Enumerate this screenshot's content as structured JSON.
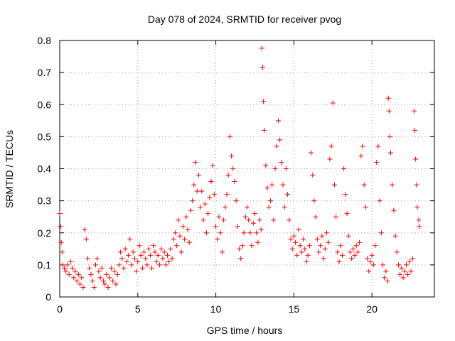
{
  "chart_data": {
    "type": "scatter",
    "title": "Day 078 of 2024, SRMTID for receiver pvog",
    "xlabel": "GPS time / hours",
    "ylabel": "SRMTID / TECUs",
    "xlim": [
      0,
      24
    ],
    "ylim": [
      0,
      0.8
    ],
    "xticks": [
      0,
      5,
      10,
      15,
      20
    ],
    "xtick_labels": [
      "0",
      "5",
      "10",
      "15",
      "20"
    ],
    "yticks": [
      0,
      0.1,
      0.2,
      0.3,
      0.4,
      0.5,
      0.6,
      0.7,
      0.8
    ],
    "ytick_labels": [
      "0",
      "0.1",
      "0.2",
      "0.3",
      "0.4",
      "0.5",
      "0.6",
      "0.7",
      "0.8"
    ],
    "grid": true,
    "marker": "+",
    "colors": {
      "marker": "#ff0000",
      "grid": "#a0a0a0",
      "axis": "#000000"
    },
    "series": [
      {
        "name": "SRMTID",
        "points": [
          [
            0.0,
            0.26
          ],
          [
            0.05,
            0.22
          ],
          [
            0.1,
            0.17
          ],
          [
            0.15,
            0.14
          ],
          [
            0.2,
            0.1
          ],
          [
            0.3,
            0.09
          ],
          [
            0.4,
            0.08
          ],
          [
            0.5,
            0.1
          ],
          [
            0.6,
            0.07
          ],
          [
            0.7,
            0.11
          ],
          [
            0.8,
            0.09
          ],
          [
            0.9,
            0.06
          ],
          [
            1.0,
            0.08
          ],
          [
            1.1,
            0.05
          ],
          [
            1.2,
            0.07
          ],
          [
            1.3,
            0.04
          ],
          [
            1.4,
            0.06
          ],
          [
            1.5,
            0.03
          ],
          [
            1.6,
            0.21
          ],
          [
            1.7,
            0.18
          ],
          [
            1.8,
            0.12
          ],
          [
            1.9,
            0.09
          ],
          [
            2.0,
            0.07
          ],
          [
            2.1,
            0.05
          ],
          [
            2.2,
            0.03
          ],
          [
            2.3,
            0.1
          ],
          [
            2.4,
            0.12
          ],
          [
            2.5,
            0.08
          ],
          [
            2.6,
            0.06
          ],
          [
            2.7,
            0.09
          ],
          [
            2.8,
            0.05
          ],
          [
            2.9,
            0.04
          ],
          [
            3.0,
            0.07
          ],
          [
            3.1,
            0.03
          ],
          [
            3.2,
            0.06
          ],
          [
            3.3,
            0.09
          ],
          [
            3.4,
            0.05
          ],
          [
            3.5,
            0.08
          ],
          [
            3.6,
            0.04
          ],
          [
            3.7,
            0.07
          ],
          [
            3.8,
            0.1
          ],
          [
            3.9,
            0.14
          ],
          [
            4.0,
            0.12
          ],
          [
            4.1,
            0.09
          ],
          [
            4.2,
            0.15
          ],
          [
            4.3,
            0.11
          ],
          [
            4.4,
            0.13
          ],
          [
            4.5,
            0.18
          ],
          [
            4.6,
            0.1
          ],
          [
            4.7,
            0.14
          ],
          [
            4.8,
            0.12
          ],
          [
            4.9,
            0.08
          ],
          [
            5.0,
            0.11
          ],
          [
            5.1,
            0.16
          ],
          [
            5.2,
            0.13
          ],
          [
            5.3,
            0.09
          ],
          [
            5.4,
            0.14
          ],
          [
            5.5,
            0.12
          ],
          [
            5.6,
            0.1
          ],
          [
            5.7,
            0.15
          ],
          [
            5.8,
            0.13
          ],
          [
            5.9,
            0.09
          ],
          [
            6.0,
            0.16
          ],
          [
            6.1,
            0.14
          ],
          [
            6.2,
            0.11
          ],
          [
            6.3,
            0.13
          ],
          [
            6.4,
            0.1
          ],
          [
            6.5,
            0.15
          ],
          [
            6.6,
            0.12
          ],
          [
            6.7,
            0.14
          ],
          [
            6.8,
            0.1
          ],
          [
            6.9,
            0.13
          ],
          [
            7.0,
            0.11
          ],
          [
            7.1,
            0.15
          ],
          [
            7.2,
            0.12
          ],
          [
            7.3,
            0.18
          ],
          [
            7.4,
            0.2
          ],
          [
            7.5,
            0.16
          ],
          [
            7.6,
            0.24
          ],
          [
            7.7,
            0.19
          ],
          [
            7.8,
            0.14
          ],
          [
            7.9,
            0.22
          ],
          [
            8.0,
            0.18
          ],
          [
            8.1,
            0.25
          ],
          [
            8.2,
            0.21
          ],
          [
            8.3,
            0.17
          ],
          [
            8.4,
            0.27
          ],
          [
            8.5,
            0.3
          ],
          [
            8.6,
            0.35
          ],
          [
            8.7,
            0.42
          ],
          [
            8.8,
            0.33
          ],
          [
            8.9,
            0.38
          ],
          [
            9.0,
            0.28
          ],
          [
            9.1,
            0.33
          ],
          [
            9.2,
            0.24
          ],
          [
            9.3,
            0.29
          ],
          [
            9.4,
            0.2
          ],
          [
            9.5,
            0.26
          ],
          [
            9.6,
            0.31
          ],
          [
            9.7,
            0.36
          ],
          [
            9.8,
            0.41
          ],
          [
            9.9,
            0.32
          ],
          [
            10.0,
            0.22
          ],
          [
            10.1,
            0.18
          ],
          [
            10.2,
            0.25
          ],
          [
            10.3,
            0.2
          ],
          [
            10.4,
            0.14
          ],
          [
            10.5,
            0.24
          ],
          [
            10.6,
            0.28
          ],
          [
            10.7,
            0.32
          ],
          [
            10.8,
            0.38
          ],
          [
            10.9,
            0.5
          ],
          [
            11.0,
            0.44
          ],
          [
            11.1,
            0.4
          ],
          [
            11.2,
            0.36
          ],
          [
            11.3,
            0.3
          ],
          [
            11.4,
            0.22
          ],
          [
            11.5,
            0.15
          ],
          [
            11.6,
            0.12
          ],
          [
            11.7,
            0.16
          ],
          [
            11.8,
            0.2
          ],
          [
            11.9,
            0.25
          ],
          [
            12.0,
            0.28
          ],
          [
            12.1,
            0.24
          ],
          [
            12.2,
            0.2
          ],
          [
            12.3,
            0.16
          ],
          [
            12.4,
            0.23
          ],
          [
            12.5,
            0.26
          ],
          [
            12.6,
            0.2
          ],
          [
            12.7,
            0.17
          ],
          [
            12.8,
            0.24
          ],
          [
            12.9,
            0.21
          ],
          [
            12.95,
            0.776
          ],
          [
            13.0,
            0.716
          ],
          [
            13.05,
            0.61
          ],
          [
            13.1,
            0.52
          ],
          [
            13.2,
            0.41
          ],
          [
            13.3,
            0.34
          ],
          [
            13.4,
            0.28
          ],
          [
            13.5,
            0.3
          ],
          [
            13.6,
            0.35
          ],
          [
            13.7,
            0.24
          ],
          [
            13.8,
            0.4
          ],
          [
            13.9,
            0.47
          ],
          [
            14.0,
            0.55
          ],
          [
            14.1,
            0.49
          ],
          [
            14.2,
            0.42
          ],
          [
            14.3,
            0.35
          ],
          [
            14.4,
            0.28
          ],
          [
            14.5,
            0.4
          ],
          [
            14.6,
            0.32
          ],
          [
            14.7,
            0.24
          ],
          [
            14.8,
            0.18
          ],
          [
            14.9,
            0.15
          ],
          [
            15.0,
            0.19
          ],
          [
            15.1,
            0.17
          ],
          [
            15.2,
            0.13
          ],
          [
            15.3,
            0.21
          ],
          [
            15.4,
            0.16
          ],
          [
            15.5,
            0.14
          ],
          [
            15.6,
            0.18
          ],
          [
            15.7,
            0.15
          ],
          [
            15.8,
            0.11
          ],
          [
            15.9,
            0.13
          ],
          [
            16.0,
            0.16
          ],
          [
            16.1,
            0.45
          ],
          [
            16.2,
            0.38
          ],
          [
            16.3,
            0.3
          ],
          [
            16.4,
            0.25
          ],
          [
            16.5,
            0.18
          ],
          [
            16.6,
            0.14
          ],
          [
            16.7,
            0.16
          ],
          [
            16.8,
            0.19
          ],
          [
            16.9,
            0.12
          ],
          [
            17.0,
            0.15
          ],
          [
            17.1,
            0.2
          ],
          [
            17.2,
            0.17
          ],
          [
            17.3,
            0.43
          ],
          [
            17.4,
            0.47
          ],
          [
            17.5,
            0.605
          ],
          [
            17.6,
            0.35
          ],
          [
            17.7,
            0.25
          ],
          [
            17.8,
            0.14
          ],
          [
            17.9,
            0.11
          ],
          [
            18.0,
            0.16
          ],
          [
            18.1,
            0.13
          ],
          [
            18.2,
            0.4
          ],
          [
            18.3,
            0.32
          ],
          [
            18.4,
            0.26
          ],
          [
            18.5,
            0.19
          ],
          [
            18.6,
            0.14
          ],
          [
            18.7,
            0.12
          ],
          [
            18.8,
            0.15
          ],
          [
            18.9,
            0.13
          ],
          [
            19.0,
            0.16
          ],
          [
            19.1,
            0.14
          ],
          [
            19.2,
            0.17
          ],
          [
            19.3,
            0.44
          ],
          [
            19.4,
            0.47
          ],
          [
            19.5,
            0.35
          ],
          [
            19.6,
            0.28
          ],
          [
            19.7,
            0.12
          ],
          [
            19.8,
            0.08
          ],
          [
            19.9,
            0.11
          ],
          [
            20.0,
            0.13
          ],
          [
            20.1,
            0.1
          ],
          [
            20.2,
            0.16
          ],
          [
            20.3,
            0.42
          ],
          [
            20.4,
            0.47
          ],
          [
            20.5,
            0.3
          ],
          [
            20.6,
            0.2
          ],
          [
            20.7,
            0.1
          ],
          [
            20.8,
            0.06
          ],
          [
            20.9,
            0.08
          ],
          [
            21.0,
            0.05
          ],
          [
            21.05,
            0.62
          ],
          [
            21.1,
            0.58
          ],
          [
            21.15,
            0.5
          ],
          [
            21.2,
            0.45
          ],
          [
            21.3,
            0.35
          ],
          [
            21.4,
            0.27
          ],
          [
            21.5,
            0.19
          ],
          [
            21.6,
            0.14
          ],
          [
            21.7,
            0.1
          ],
          [
            21.8,
            0.07
          ],
          [
            21.9,
            0.09
          ],
          [
            22.0,
            0.06
          ],
          [
            22.1,
            0.08
          ],
          [
            22.2,
            0.1
          ],
          [
            22.3,
            0.07
          ],
          [
            22.4,
            0.11
          ],
          [
            22.5,
            0.08
          ],
          [
            22.6,
            0.12
          ],
          [
            22.7,
            0.58
          ],
          [
            22.75,
            0.52
          ],
          [
            22.8,
            0.43
          ],
          [
            22.85,
            0.35
          ],
          [
            22.9,
            0.28
          ],
          [
            23.0,
            0.24
          ],
          [
            23.05,
            0.22
          ]
        ]
      }
    ]
  }
}
